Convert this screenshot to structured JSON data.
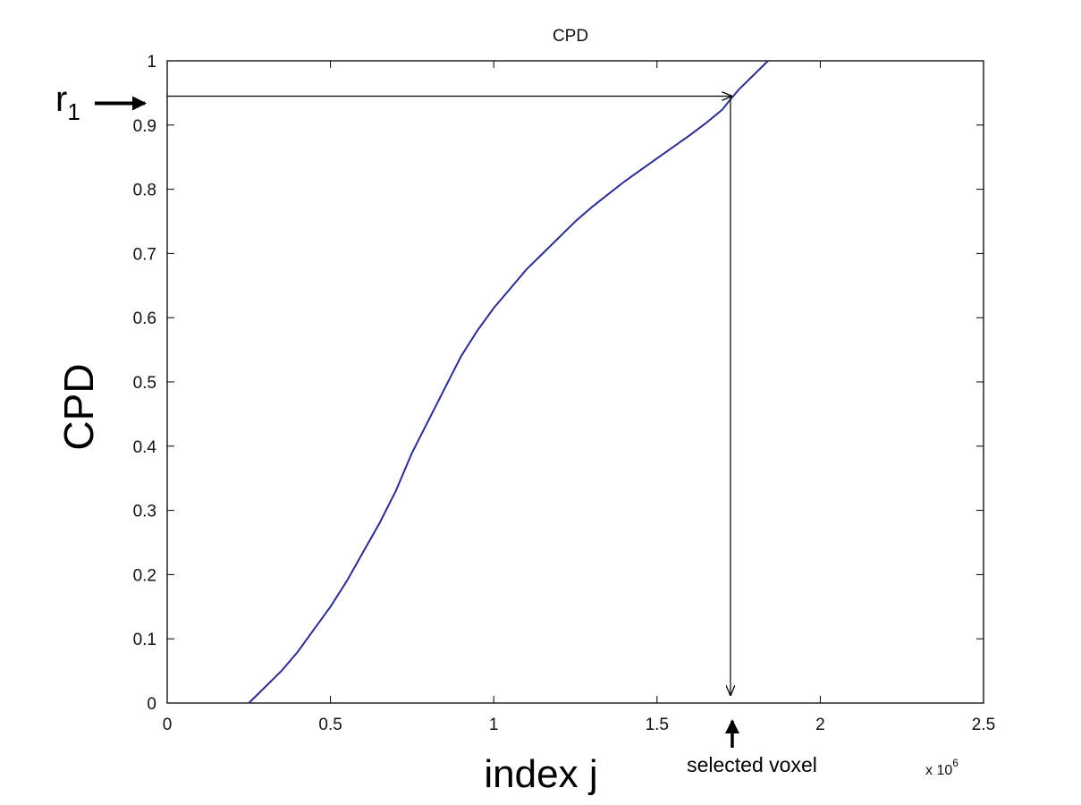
{
  "chart_data": {
    "type": "line",
    "title": "CPD",
    "ylabel": "CPD",
    "xlabel": "index j",
    "xlim": [
      0,
      2.5
    ],
    "ylim": [
      0,
      1
    ],
    "x_scale_multiplier": "x 10",
    "x_scale_exponent": "6",
    "x_ticks": [
      "0",
      "0.5",
      "1",
      "1.5",
      "2",
      "2.5"
    ],
    "y_ticks": [
      "0",
      "0.1",
      "0.2",
      "0.3",
      "0.4",
      "0.5",
      "0.6",
      "0.7",
      "0.8",
      "0.9",
      "1"
    ],
    "grid": false,
    "series": [
      {
        "color": "#2b2d8f",
        "x": [
          0.25,
          0.3,
          0.35,
          0.4,
          0.45,
          0.5,
          0.55,
          0.6,
          0.65,
          0.7,
          0.75,
          0.8,
          0.85,
          0.9,
          0.95,
          1.0,
          1.05,
          1.1,
          1.15,
          1.2,
          1.25,
          1.3,
          1.35,
          1.4,
          1.45,
          1.5,
          1.55,
          1.6,
          1.65,
          1.7,
          1.725,
          1.75,
          1.8,
          1.84
        ],
        "y": [
          0.0,
          0.025,
          0.05,
          0.08,
          0.115,
          0.15,
          0.19,
          0.235,
          0.28,
          0.33,
          0.39,
          0.44,
          0.49,
          0.54,
          0.58,
          0.615,
          0.645,
          0.675,
          0.7,
          0.725,
          0.75,
          0.772,
          0.792,
          0.812,
          0.83,
          0.848,
          0.866,
          0.884,
          0.903,
          0.924,
          0.94,
          0.955,
          0.98,
          1.0
        ]
      }
    ],
    "annotations": {
      "r_label": "r",
      "r_subscript": "1",
      "r_value": 0.945,
      "selected_x": 1.725,
      "selected_label": "selected voxel"
    }
  }
}
